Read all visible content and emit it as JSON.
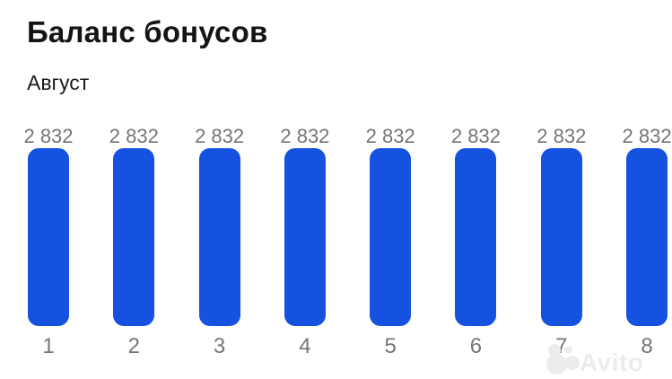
{
  "header": {
    "title": "Баланс бонусов",
    "subtitle": "Август"
  },
  "watermark": {
    "label": "Avito"
  },
  "chart_data": {
    "type": "bar",
    "title": "Баланс бонусов",
    "subtitle": "Август",
    "categories": [
      "1",
      "2",
      "3",
      "4",
      "5",
      "6",
      "7",
      "8"
    ],
    "values": [
      2832,
      2832,
      2832,
      2832,
      2832,
      2832,
      2832,
      2832
    ],
    "value_labels": [
      "2 832",
      "2 832",
      "2 832",
      "2 832",
      "2 832",
      "2 832",
      "2 832",
      "2 832"
    ],
    "xlabel": "",
    "ylabel": "",
    "ylim": [
      0,
      2832
    ],
    "grid": false,
    "legend": "none",
    "bar_color": "#1652e0",
    "label_color": "#757575",
    "note": "8th bar and its labels are clipped by the right screen edge"
  }
}
